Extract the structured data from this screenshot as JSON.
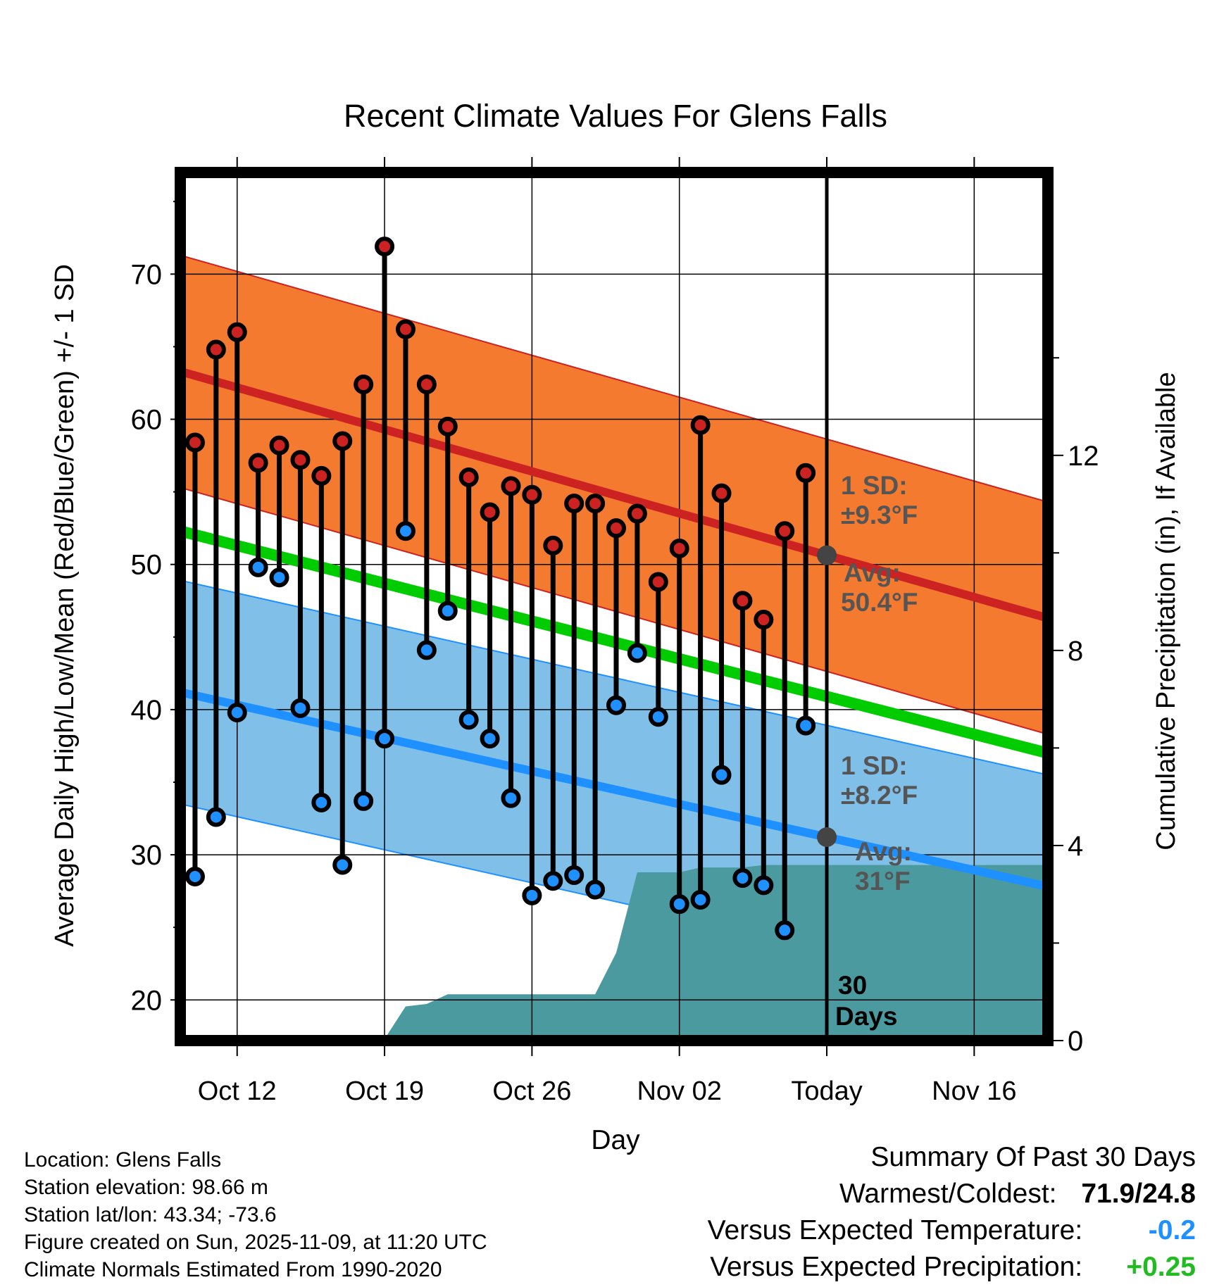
{
  "chart_data": {
    "type": "line",
    "title": "Recent Climate Values For Glens Falls",
    "xlabel": "Day",
    "ylabel": "Average Daily High/Low/Mean (Red/Blue/Green) +/- 1 SD",
    "y2label": "Cumulative Precipitation (in), If Available",
    "x_ticks": [
      "Oct 12",
      "Oct 19",
      "Oct 26",
      "Nov 02",
      "Today",
      "Nov 16"
    ],
    "x_tick_days": [
      3,
      10,
      17,
      24,
      31,
      38
    ],
    "x_range_days": [
      0.3,
      41.5
    ],
    "ylim": [
      17.2,
      77
    ],
    "y_ticks": [
      20,
      30,
      40,
      50,
      60,
      70
    ],
    "y2lim": [
      0,
      17.8
    ],
    "y2_ticks": [
      0,
      4,
      8,
      12
    ],
    "today_day": 31,
    "normals": {
      "high_start": 63.3,
      "high_end": 46.3,
      "high_sd": 8.0,
      "low_start": 41.2,
      "low_end": 27.8,
      "low_sd": 7.7,
      "mean_start": 52.3,
      "mean_end": 37.0
    },
    "observed_days": [
      1,
      2,
      3,
      4,
      5,
      6,
      7,
      8,
      9,
      10,
      11,
      12,
      13,
      14,
      15,
      16,
      17,
      18,
      19,
      20,
      21,
      22,
      23,
      24,
      25,
      26,
      27,
      28,
      29,
      30
    ],
    "observed_high": [
      58.4,
      64.8,
      66.0,
      57.0,
      58.2,
      57.2,
      56.1,
      58.5,
      62.4,
      71.9,
      66.2,
      62.4,
      59.5,
      56.0,
      53.6,
      55.4,
      54.8,
      51.3,
      54.2,
      54.2,
      52.5,
      53.5,
      48.8,
      51.1,
      59.6,
      54.9,
      47.5,
      46.2,
      52.3,
      56.3
    ],
    "observed_low": [
      28.5,
      32.6,
      39.8,
      49.8,
      49.1,
      40.1,
      33.6,
      29.3,
      33.7,
      38.0,
      52.3,
      44.1,
      46.8,
      39.3,
      38.0,
      33.9,
      27.2,
      28.2,
      28.6,
      27.6,
      40.3,
      43.9,
      39.5,
      26.6,
      26.9,
      35.5,
      28.4,
      27.9,
      24.8,
      38.9
    ],
    "precip_days": [
      0.3,
      4,
      10,
      11,
      12,
      13,
      14,
      20,
      21,
      22,
      23,
      24,
      25,
      26,
      27,
      28,
      29,
      30,
      31,
      41.5
    ],
    "precip_cum": [
      0,
      0.03,
      0.03,
      0.7,
      0.75,
      0.95,
      0.95,
      0.95,
      1.8,
      3.45,
      3.45,
      3.45,
      3.55,
      3.55,
      3.55,
      3.6,
      3.6,
      3.6,
      3.6,
      3.6
    ],
    "annotations": {
      "high_sd_label": "1 SD:",
      "high_sd_value": "±9.3°F",
      "high_avg_label": "Avg:",
      "high_avg_value": "50.4°F",
      "low_sd_label": "1 SD:",
      "low_sd_value": "±8.2°F",
      "low_avg_label": "Avg:",
      "low_avg_value": "31°F",
      "days_number": "30",
      "days_word": "Days"
    },
    "colors": {
      "high_band": "#f47a30",
      "high_line": "#cc2222",
      "low_band": "#80c0e8",
      "low_line": "#1e90ff",
      "mean_line": "#00cc00",
      "precip": "#4a9aa0",
      "high_dot": "#cc2222",
      "low_dot": "#1e90ff",
      "avg_dot": "#444444",
      "annotation_text": "#555555"
    }
  },
  "info": {
    "location": "Location: Glens Falls",
    "elevation": "Station elevation: 98.66 m",
    "latlon": "Station lat/lon: 43.34; -73.6",
    "created": "Figure created on Sun, 2025-11-09, at 11:20 UTC",
    "normals": "Climate Normals Estimated From 1990-2020"
  },
  "summary": {
    "title": "Summary Of Past 30 Days",
    "warm_cold_label": "Warmest/Coldest:",
    "warm_cold_value": "71.9/24.8",
    "temp_label": "Versus Expected Temperature:",
    "temp_value": "-0.2",
    "temp_color": "#1e90ff",
    "precip_label": "Versus Expected Precipitation:",
    "precip_value": "+0.25",
    "precip_color": "#22bb22"
  }
}
